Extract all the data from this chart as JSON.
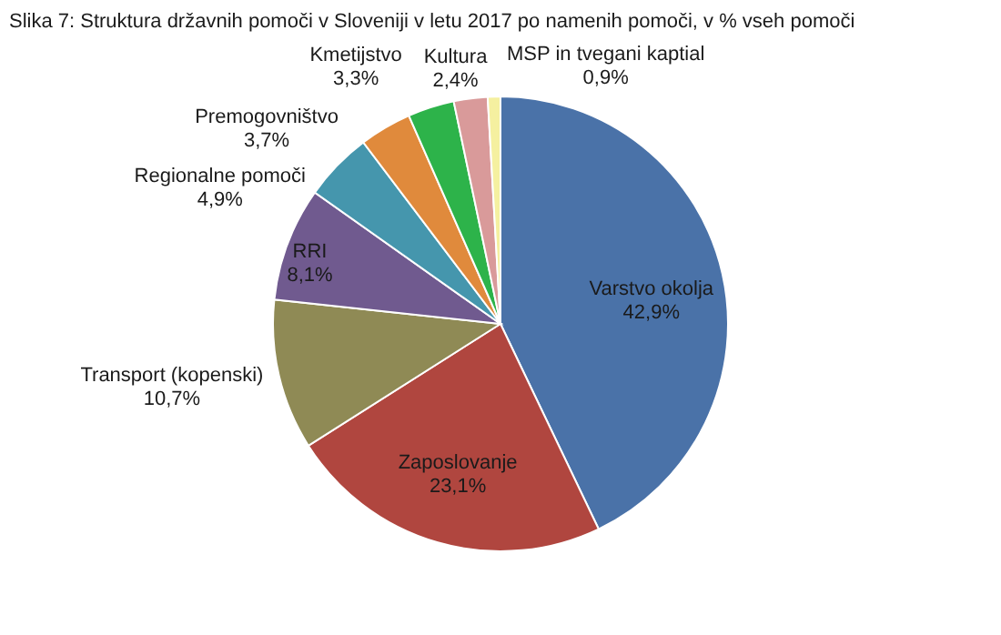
{
  "chart_data": {
    "type": "pie",
    "title": "Slika 7: Struktura državnih pomoči v Sloveniji v letu 2017 po namenih pomoči, v % vseh pomoči",
    "categories": [
      "Varstvo okolja",
      "Zaposlovanje",
      "Transport (kopenski)",
      "RRI",
      "Regionalne pomoči",
      "Premogovništvo",
      "Kmetijstvo",
      "Kultura",
      "MSP in tvegani kaptial"
    ],
    "values": [
      42.9,
      23.1,
      10.7,
      8.1,
      4.9,
      3.7,
      3.3,
      2.4,
      0.9
    ],
    "value_labels": [
      "42,9%",
      "23,1%",
      "10,7%",
      "8,1%",
      "4,9%",
      "3,7%",
      "3,3%",
      "2,4%",
      "0,9%"
    ],
    "colors": [
      "#4a72a8",
      "#b0463f",
      "#8f8a55",
      "#705a8f",
      "#4596ad",
      "#e08a3c",
      "#2db34a",
      "#d99a9a",
      "#f5f0a0"
    ],
    "legend": false
  }
}
